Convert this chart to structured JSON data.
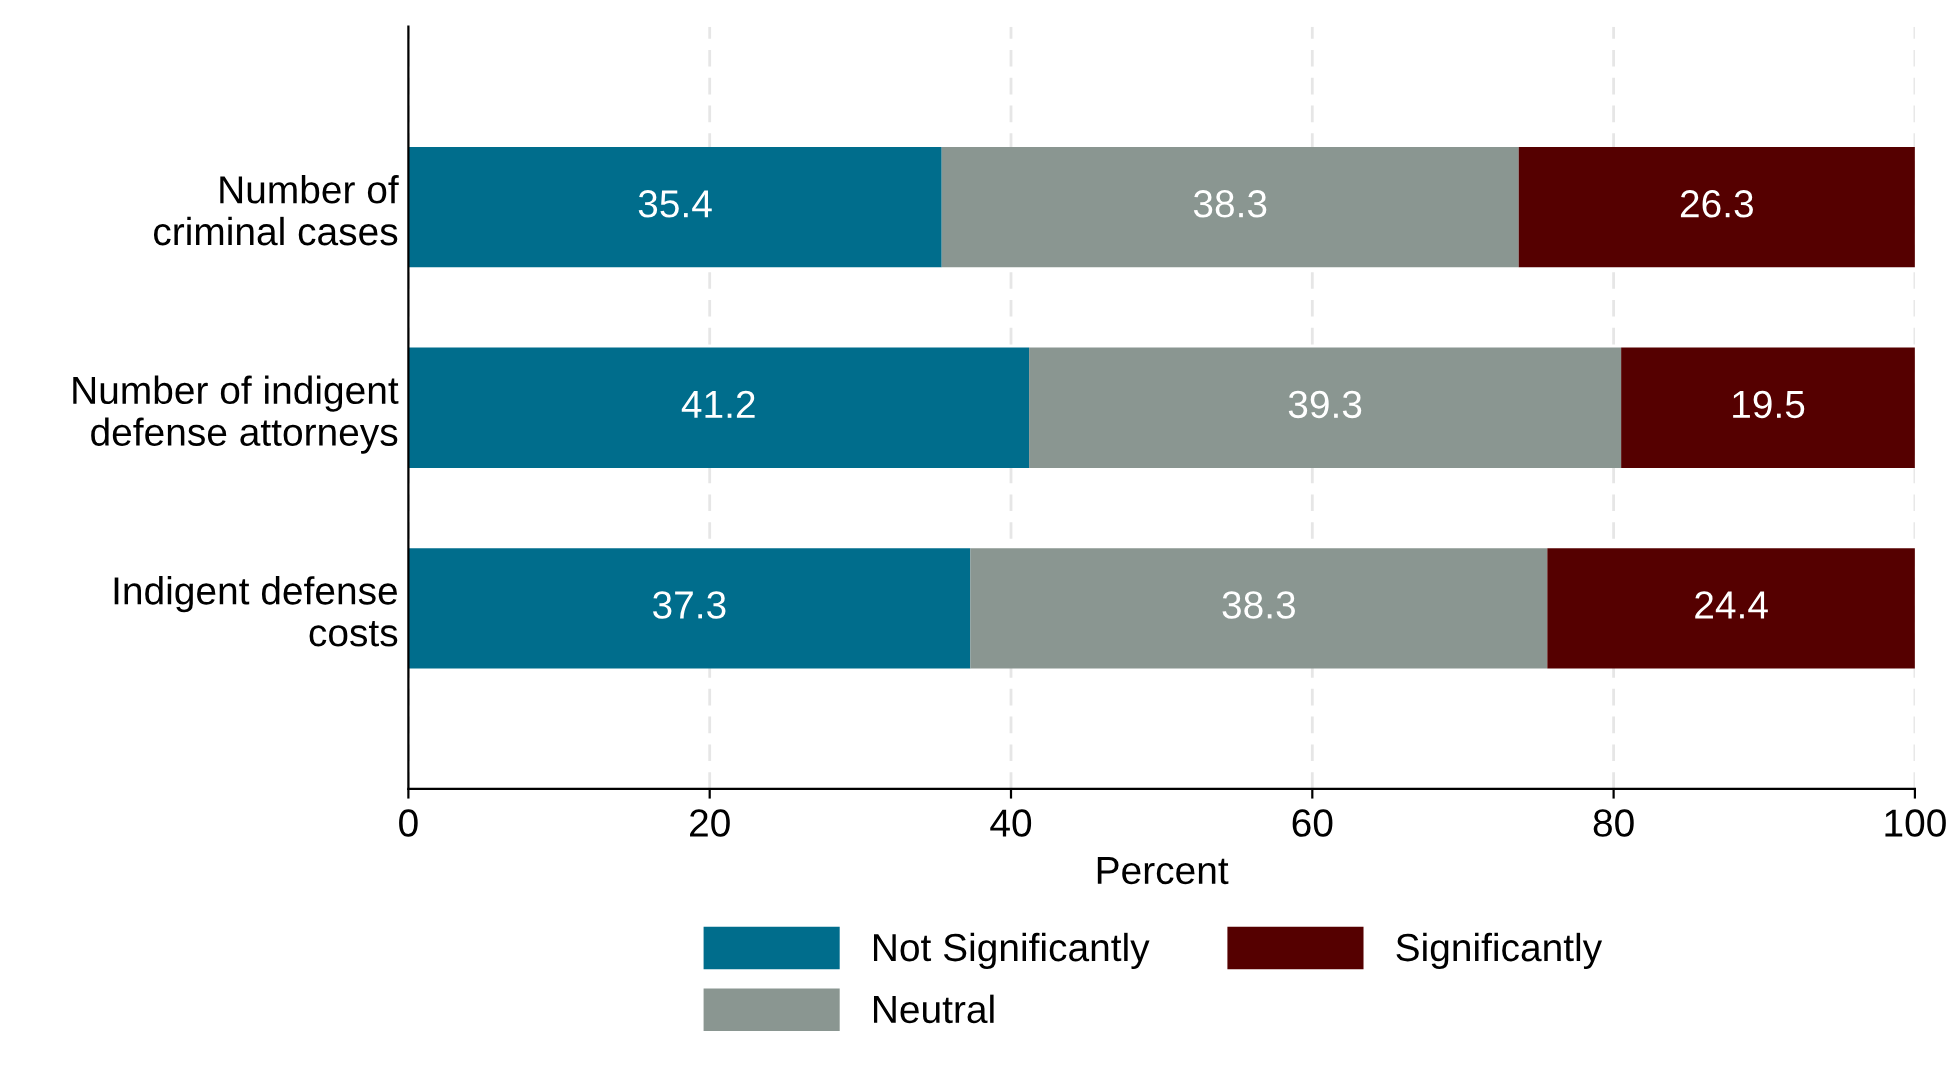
{
  "chart_data": {
    "type": "bar",
    "orientation": "horizontal",
    "stacked": true,
    "categories": [
      "Number of\ncriminal cases",
      "Number of indigent\ndefense attorneys",
      "Indigent defense\ncosts"
    ],
    "series": [
      {
        "name": "Not Significantly",
        "color": "#006d8c",
        "values": [
          35.4,
          41.2,
          37.3
        ]
      },
      {
        "name": "Neutral",
        "color": "#8a9691",
        "values": [
          38.3,
          39.3,
          38.3
        ]
      },
      {
        "name": "Significantly",
        "color": "#550000",
        "values": [
          26.3,
          19.5,
          24.4
        ]
      }
    ],
    "xlabel": "Percent",
    "xlim": [
      0,
      100
    ],
    "xticks": [
      0,
      20,
      40,
      60,
      80,
      100
    ],
    "grid": "x",
    "legend": "bottom",
    "data_labels": true
  }
}
